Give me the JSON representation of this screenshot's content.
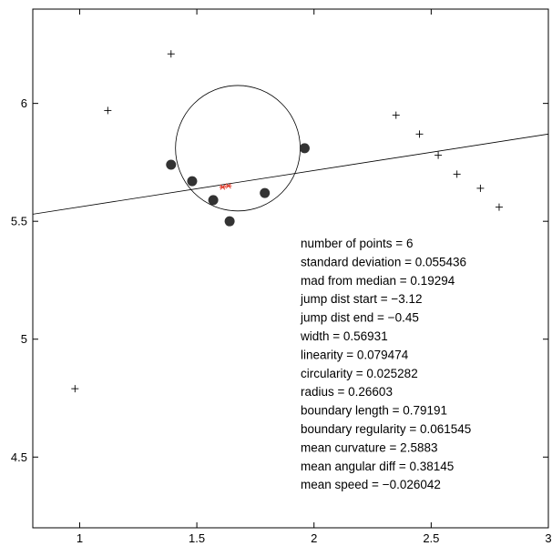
{
  "chart_data": {
    "type": "scatter",
    "xlim": [
      0.8,
      3.0
    ],
    "ylim": [
      4.2,
      6.4
    ],
    "xticks": [
      1,
      1.5,
      2,
      2.5,
      3
    ],
    "yticks": [
      4.5,
      5,
      5.5,
      6
    ],
    "xtick_labels": [
      "1",
      "1.5",
      "2",
      "2.5",
      "3"
    ],
    "ytick_labels": [
      "4.5",
      "5",
      "5.5",
      "6"
    ],
    "grid": false,
    "colors": {
      "axis": "#000000",
      "cross_points": "#000000",
      "segment_points": "#333333",
      "centroid": "#e03020",
      "fit_line": "#000000",
      "circle": "#000000"
    },
    "cross_points": [
      {
        "x": 0.98,
        "y": 4.79
      },
      {
        "x": 1.12,
        "y": 5.97
      },
      {
        "x": 1.39,
        "y": 6.21
      },
      {
        "x": 2.35,
        "y": 5.95
      },
      {
        "x": 2.45,
        "y": 5.87
      },
      {
        "x": 2.53,
        "y": 5.78
      },
      {
        "x": 2.61,
        "y": 5.7
      },
      {
        "x": 2.71,
        "y": 5.64
      },
      {
        "x": 2.79,
        "y": 5.56
      }
    ],
    "segment_points": [
      {
        "x": 1.39,
        "y": 5.74
      },
      {
        "x": 1.48,
        "y": 5.67
      },
      {
        "x": 1.57,
        "y": 5.59
      },
      {
        "x": 1.64,
        "y": 5.5
      },
      {
        "x": 1.79,
        "y": 5.62
      },
      {
        "x": 1.96,
        "y": 5.81
      }
    ],
    "centroid_points": [
      {
        "x": 1.61,
        "y": 5.645
      },
      {
        "x": 1.635,
        "y": 5.65
      }
    ],
    "fit_line": [
      {
        "x": 0.8,
        "y": 5.53
      },
      {
        "x": 3.0,
        "y": 5.87
      }
    ],
    "circle": {
      "center": {
        "x": 1.675,
        "y": 5.81
      },
      "radius": 0.26603
    },
    "annotations": [
      "number of points = 6",
      "standard deviation = 0.055436",
      "mad from median = 0.19294",
      "jump dist start = −3.12",
      "jump dist end = −0.45",
      "width = 0.56931",
      "linearity = 0.079474",
      "circularity = 0.025282",
      "radius = 0.26603",
      "boundary length = 0.79191",
      "boundary regularity = 0.061545",
      "mean curvature = 2.5883",
      "mean angular diff = 0.38145",
      "mean speed = −0.026042"
    ]
  }
}
